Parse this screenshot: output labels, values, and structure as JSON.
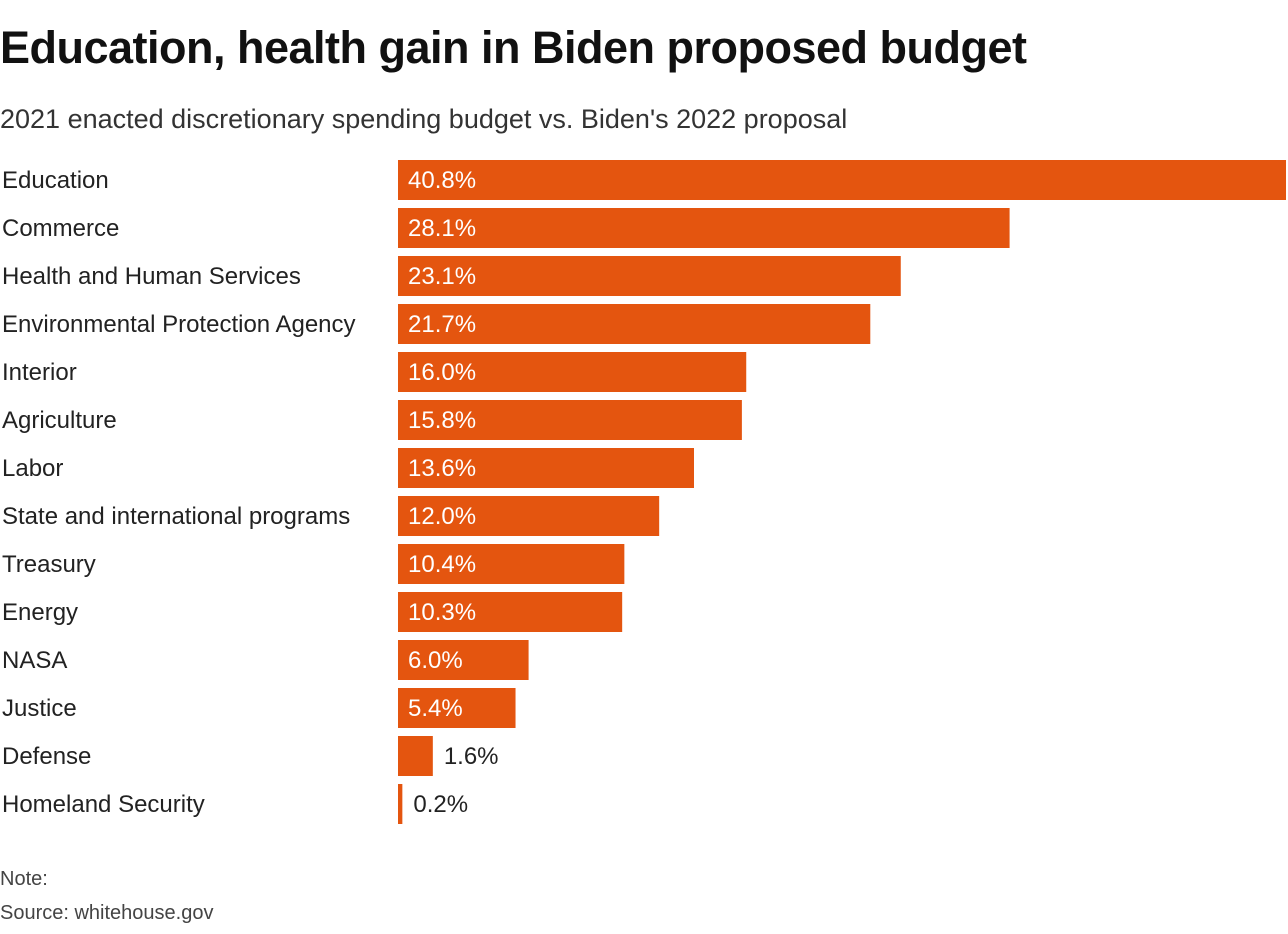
{
  "chart_data": {
    "type": "bar",
    "orientation": "horizontal",
    "title": "Education, health gain in Biden proposed budget",
    "subtitle": "2021 enacted discretionary spending budget vs. Biden's 2022 proposal",
    "categories": [
      "Education",
      "Commerce",
      "Health and Human Services",
      "Environmental Protection Agency",
      "Interior",
      "Agriculture",
      "Labor",
      "State and international programs",
      "Treasury",
      "Energy",
      "NASA",
      "Justice",
      "Defense",
      "Homeland Security"
    ],
    "values": [
      40.8,
      28.1,
      23.1,
      21.7,
      16.0,
      15.8,
      13.6,
      12.0,
      10.4,
      10.3,
      6.0,
      5.4,
      1.6,
      0.2
    ],
    "labels": [
      "40.8%",
      "28.1%",
      "23.1%",
      "21.7%",
      "16.0%",
      "15.8%",
      "13.6%",
      "12.0%",
      "10.4%",
      "10.3%",
      "6.0%",
      "5.4%",
      "1.6%",
      "0.2%"
    ],
    "xlim": [
      0,
      40.8
    ],
    "bar_color": "#e4550f",
    "grid": false,
    "legend": "none"
  },
  "footer": {
    "note": "Note:",
    "source": "Source: whitehouse.gov"
  }
}
